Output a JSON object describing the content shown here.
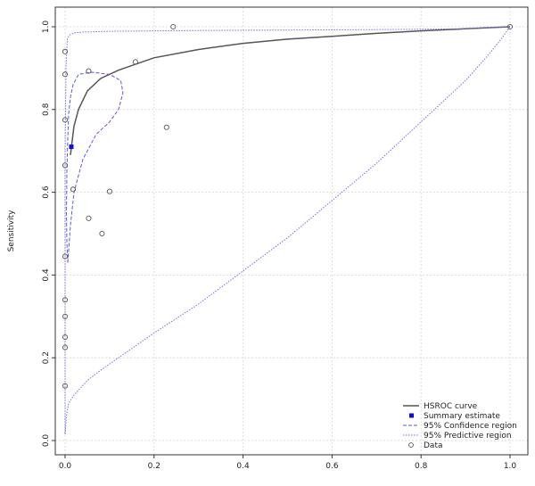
{
  "chart_data": {
    "type": "scatter",
    "title": "",
    "xlabel": "",
    "ylabel": "Sensitivity",
    "xlim": [
      0,
      1
    ],
    "ylim": [
      0,
      1
    ],
    "x_ticks": [
      "0.0",
      "0.2",
      "0.4",
      "0.6",
      "0.8",
      "1.0"
    ],
    "y_ticks": [
      "0.0",
      "0.2",
      "0.4",
      "0.6",
      "0.8",
      "1.0"
    ],
    "grid": true,
    "legend_position": "bottom-right",
    "colors": {
      "hsroc": "#555555",
      "summary": "#1010c8",
      "confidence": "#5a5ae0",
      "predictive": "#7070e6",
      "data": "#555555",
      "grid": "#dcdcdc"
    },
    "legend": [
      {
        "key": "hsroc",
        "label": "HSROC curve"
      },
      {
        "key": "summary",
        "label": "Summary estimate"
      },
      {
        "key": "confidence",
        "label": "95% Confidence region"
      },
      {
        "key": "predictive",
        "label": "95% Predictive region"
      },
      {
        "key": "data",
        "label": "Data"
      }
    ],
    "series": [
      {
        "key": "hsroc",
        "type": "line",
        "points": [
          [
            0.012,
            0.69
          ],
          [
            0.02,
            0.76
          ],
          [
            0.03,
            0.8
          ],
          [
            0.05,
            0.845
          ],
          [
            0.08,
            0.875
          ],
          [
            0.12,
            0.895
          ],
          [
            0.2,
            0.925
          ],
          [
            0.3,
            0.945
          ],
          [
            0.4,
            0.96
          ],
          [
            0.5,
            0.97
          ],
          [
            0.6,
            0.977
          ],
          [
            0.7,
            0.984
          ],
          [
            0.8,
            0.99
          ],
          [
            0.9,
            0.995
          ],
          [
            1.0,
            1.0
          ]
        ]
      },
      {
        "key": "summary",
        "type": "point",
        "points": [
          [
            0.014,
            0.71
          ]
        ]
      },
      {
        "key": "confidence",
        "type": "closed-curve",
        "points": [
          [
            0.006,
            0.43
          ],
          [
            0.012,
            0.52
          ],
          [
            0.02,
            0.6
          ],
          [
            0.04,
            0.68
          ],
          [
            0.07,
            0.74
          ],
          [
            0.1,
            0.77
          ],
          [
            0.12,
            0.8
          ],
          [
            0.13,
            0.84
          ],
          [
            0.125,
            0.87
          ],
          [
            0.1,
            0.885
          ],
          [
            0.06,
            0.89
          ],
          [
            0.03,
            0.885
          ],
          [
            0.018,
            0.86
          ],
          [
            0.012,
            0.83
          ],
          [
            0.008,
            0.79
          ],
          [
            0.006,
            0.73
          ],
          [
            0.004,
            0.65
          ],
          [
            0.003,
            0.55
          ],
          [
            0.004,
            0.48
          ],
          [
            0.006,
            0.43
          ]
        ]
      },
      {
        "key": "predictive",
        "type": "closed-curve",
        "points": [
          [
            0.0,
            0.015
          ],
          [
            0.003,
            0.06
          ],
          [
            0.008,
            0.09
          ],
          [
            0.02,
            0.11
          ],
          [
            0.05,
            0.145
          ],
          [
            0.08,
            0.17
          ],
          [
            0.12,
            0.2
          ],
          [
            0.2,
            0.26
          ],
          [
            0.3,
            0.33
          ],
          [
            0.4,
            0.41
          ],
          [
            0.5,
            0.49
          ],
          [
            0.6,
            0.58
          ],
          [
            0.7,
            0.67
          ],
          [
            0.8,
            0.77
          ],
          [
            0.9,
            0.87
          ],
          [
            0.95,
            0.93
          ],
          [
            0.98,
            0.97
          ],
          [
            1.0,
            1.0
          ],
          [
            0.9,
            0.995
          ],
          [
            0.7,
            0.993
          ],
          [
            0.5,
            0.992
          ],
          [
            0.3,
            0.991
          ],
          [
            0.1,
            0.989
          ],
          [
            0.04,
            0.987
          ],
          [
            0.02,
            0.985
          ],
          [
            0.01,
            0.98
          ],
          [
            0.005,
            0.97
          ],
          [
            0.002,
            0.9
          ],
          [
            0.0,
            0.7
          ],
          [
            0.0,
            0.015
          ]
        ]
      },
      {
        "key": "data",
        "type": "point",
        "points": [
          [
            0.0,
            0.94
          ],
          [
            0.0,
            0.885
          ],
          [
            0.0,
            0.775
          ],
          [
            0.0,
            0.665
          ],
          [
            0.0,
            0.445
          ],
          [
            0.0,
            0.34
          ],
          [
            0.0,
            0.3
          ],
          [
            0.0,
            0.25
          ],
          [
            0.0,
            0.225
          ],
          [
            0.0,
            0.132
          ],
          [
            0.018,
            0.607
          ],
          [
            0.053,
            0.893
          ],
          [
            0.053,
            0.537
          ],
          [
            0.083,
            0.5
          ],
          [
            0.1,
            0.602
          ],
          [
            0.158,
            0.915
          ],
          [
            0.228,
            0.757
          ],
          [
            0.243,
            1.0
          ],
          [
            1.0,
            1.0
          ]
        ]
      }
    ]
  }
}
